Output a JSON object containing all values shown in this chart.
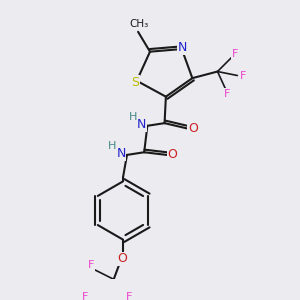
{
  "background_color": "#ebebf0",
  "bond_color": "#1a1a1a",
  "atom_colors": {
    "N": "#2222cc",
    "O": "#cc2222",
    "S": "#bbbb00",
    "F": "#ee44cc",
    "H": "#448888",
    "C": "#1a1a1a"
  },
  "figsize": [
    3.0,
    3.0
  ],
  "dpi": 100
}
